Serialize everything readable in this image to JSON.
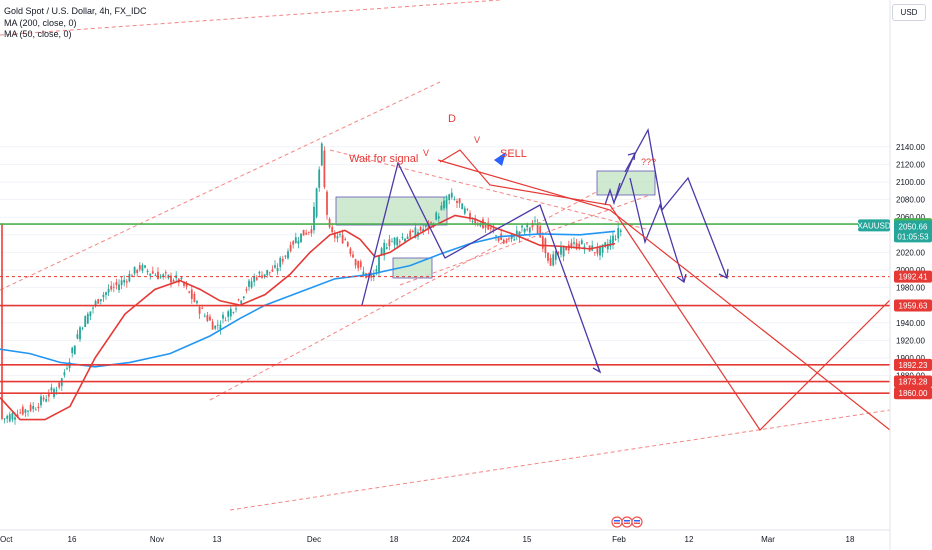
{
  "legend": {
    "title": "Gold Spot / U.S. Dollar, 4h, FX_IDC",
    "ma200": "MA (200, close, 0)",
    "ma50": "MA (50, close, 0)"
  },
  "currency_button": "USD",
  "chart_data": {
    "type": "candlestick",
    "symbol": "XAUUSD",
    "timeframe": "4h",
    "y_axis": {
      "range": [
        1855,
        2152
      ],
      "ticks": [
        1880,
        1900,
        1920,
        1940,
        1960,
        1980,
        2000,
        2020,
        2040,
        2060,
        2080,
        2100,
        2120,
        2140
      ]
    },
    "x_axis_labels": [
      "Oct",
      "16",
      "Nov",
      "13",
      "Dec",
      "18",
      "2024",
      "15",
      "Feb",
      "12",
      "Mar",
      "18"
    ],
    "current_price": {
      "symbol_tag": "XAUUSD",
      "price": "2050.66",
      "countdown": "01:05:53",
      "tag_color": "#26a69a"
    },
    "horizontal_levels": [
      {
        "price": 2052.18,
        "label": "2052.18",
        "color": "#4caf50",
        "style": "solid"
      },
      {
        "price": 1992.41,
        "label": "1992.41",
        "color": "#e53935",
        "style": "dashed"
      },
      {
        "price": 1959.63,
        "label": "1959.63",
        "color": "#e53935",
        "style": "solid"
      },
      {
        "price": 1892.23,
        "label": "1892.23",
        "color": "#e53935",
        "style": "solid"
      },
      {
        "price": 1873.28,
        "label": "1873.28",
        "color": "#e53935",
        "style": "solid"
      },
      {
        "price": 1860.0,
        "label": "1860.00",
        "color": "#e53935",
        "style": "solid"
      }
    ],
    "annotations": [
      {
        "text": "Wait for signal",
        "color": "#e53935"
      },
      {
        "text": "SELL",
        "color": "#e53935"
      },
      {
        "text": "D",
        "color": "#e53935"
      },
      {
        "text": "V",
        "color": "#e53935"
      },
      {
        "text": "V",
        "color": "#e53935"
      },
      {
        "text": "???",
        "color": "#e53935"
      }
    ],
    "series": [
      {
        "name": "MA (200, close, 0)",
        "color": "#2196f3"
      },
      {
        "name": "MA (50, close, 0)",
        "color": "#e53935"
      }
    ],
    "colors": {
      "up": "#26a69a",
      "down": "#ef5350",
      "zone_fill": "#c8e6c9",
      "projection": "#4a3aa8"
    }
  }
}
